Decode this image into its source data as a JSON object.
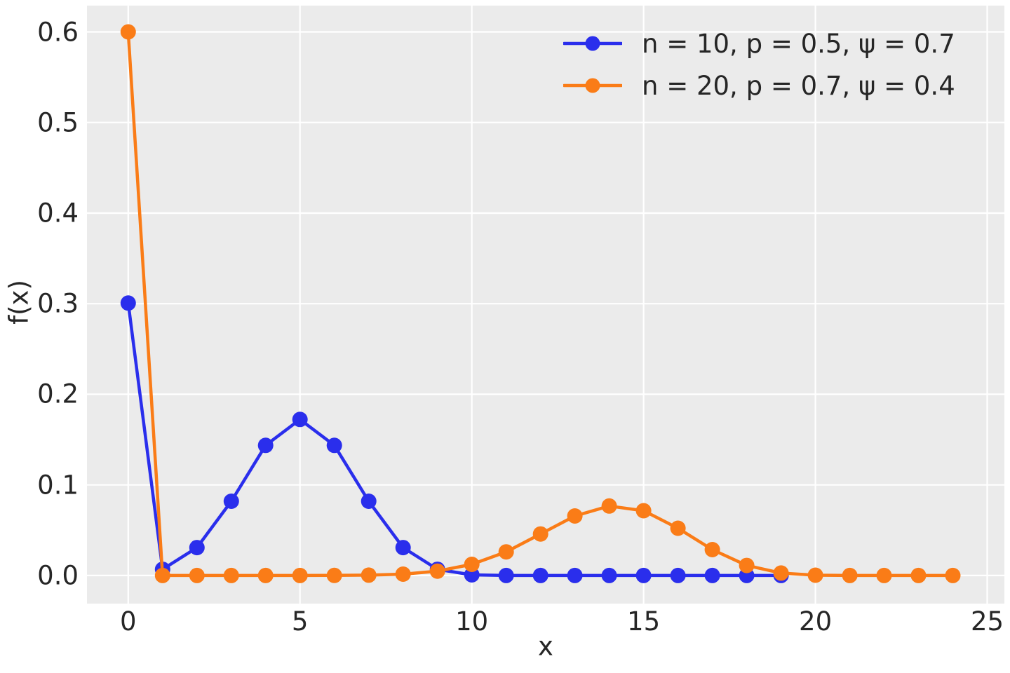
{
  "figure": {
    "background": "#ffffff",
    "plot_background": "#ebebeb",
    "grid_color": "#ffffff",
    "text_color": "#262626"
  },
  "chart_data": {
    "type": "line",
    "title": "",
    "xlabel": "x",
    "ylabel": "f(x)",
    "xlim": [
      -1.2,
      25.5
    ],
    "ylim": [
      -0.031,
      0.629
    ],
    "grid": true,
    "legend_position": "upper right",
    "x_ticks": {
      "values": [
        0,
        5,
        10,
        15,
        20,
        25
      ],
      "labels": [
        "0",
        "5",
        "10",
        "15",
        "20",
        "25"
      ]
    },
    "y_ticks": {
      "values": [
        0.0,
        0.1,
        0.2,
        0.3,
        0.4,
        0.5,
        0.6
      ],
      "labels": [
        "0.0",
        "0.1",
        "0.2",
        "0.3",
        "0.4",
        "0.5",
        "0.6"
      ]
    },
    "series": [
      {
        "name": "n = 10, p = 0.5, ψ = 0.7",
        "color": "#2a2eec",
        "marker": "circle",
        "x": [
          0,
          1,
          2,
          3,
          4,
          5,
          6,
          7,
          8,
          9,
          10,
          11,
          12,
          13,
          14,
          15,
          16,
          17,
          18,
          19
        ],
        "y": [
          0.3007,
          0.0068,
          0.0308,
          0.082,
          0.1436,
          0.1723,
          0.1436,
          0.082,
          0.0308,
          0.0068,
          0.0007,
          0,
          0,
          0,
          0,
          0,
          0,
          0,
          0,
          0
        ]
      },
      {
        "name": "n = 20, p = 0.7, ψ = 0.4",
        "color": "#fa7c17",
        "marker": "circle",
        "x": [
          0,
          1,
          2,
          3,
          4,
          5,
          6,
          7,
          8,
          9,
          10,
          11,
          12,
          13,
          14,
          15,
          16,
          17,
          18,
          19,
          20,
          21,
          22,
          23,
          24
        ],
        "y": [
          0.6,
          0,
          0,
          0,
          0,
          0,
          0.0001,
          0.0004,
          0.0015,
          0.0048,
          0.0123,
          0.0261,
          0.0458,
          0.0657,
          0.0767,
          0.0715,
          0.0522,
          0.0286,
          0.0111,
          0.0027,
          0.0003,
          0,
          0,
          0,
          0
        ]
      }
    ]
  }
}
